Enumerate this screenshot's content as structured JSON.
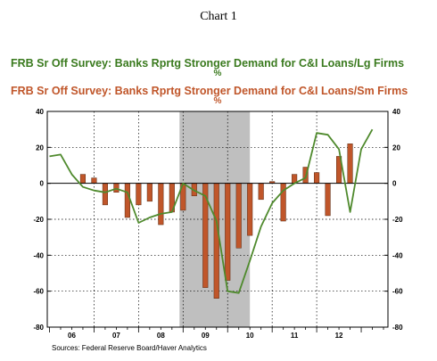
{
  "chart_data": {
    "type": "bar",
    "figure_title": "Chart 1",
    "series": [
      {
        "name": "FRB Sr Off Survey: Banks Rprtg Stronger Demand for C&I Loans/Lg Firms",
        "unit": "%",
        "kind": "line",
        "color": "#4f8a2d",
        "x": [
          2005.0,
          2005.25,
          2005.5,
          2005.75,
          2006.0,
          2006.25,
          2006.5,
          2006.75,
          2007.0,
          2007.25,
          2007.5,
          2007.75,
          2008.0,
          2008.25,
          2008.5,
          2008.75,
          2009.0,
          2009.25,
          2009.5,
          2009.75,
          2010.0,
          2010.25,
          2010.5,
          2010.75,
          2011.0,
          2011.25,
          2011.5,
          2011.75,
          2012.0,
          2012.25
        ],
        "values": [
          15,
          16,
          5,
          -2,
          -4,
          -5,
          -3,
          -5,
          -22,
          -19,
          -17,
          -16,
          0,
          -4,
          -7,
          -21,
          -60,
          -61,
          -43,
          -24,
          -11,
          -4,
          0,
          3,
          28,
          27,
          19,
          -16,
          19,
          30
        ]
      },
      {
        "name": "FRB Sr Off Survey: Banks Rprtg Stronger Demand for C&I Loans/Sm Firms",
        "unit": "%",
        "kind": "bar",
        "color": "#c0562a",
        "x": [
          2005.75,
          2006.0,
          2006.25,
          2006.5,
          2006.75,
          2007.0,
          2007.25,
          2007.5,
          2007.75,
          2008.0,
          2008.25,
          2008.5,
          2008.75,
          2009.0,
          2009.25,
          2009.5,
          2009.75,
          2010.0,
          2010.25,
          2010.5,
          2010.75,
          2011.0,
          2011.25,
          2011.5,
          2011.75,
          2012.0
        ],
        "values": [
          5,
          3,
          -12,
          -5,
          -19,
          -12,
          -10,
          -23,
          -16,
          -15,
          -7,
          -58,
          -64,
          -54,
          -36,
          -29,
          -9,
          1,
          -21,
          5,
          9,
          6,
          -18,
          15,
          22,
          0
        ]
      }
    ],
    "recession_shading": {
      "from": 2007.92,
      "to": 2009.5
    },
    "ylim": [
      -80,
      40
    ],
    "yticks": [
      -80,
      -60,
      -40,
      -20,
      0,
      20,
      40
    ],
    "xlim": [
      2004.95,
      2012.6
    ],
    "xticks": [
      {
        "value": 2005.5,
        "label": "06"
      },
      {
        "value": 2006.5,
        "label": "07"
      },
      {
        "value": 2007.5,
        "label": "08"
      },
      {
        "value": 2008.5,
        "label": "09"
      },
      {
        "value": 2009.5,
        "label": "10"
      },
      {
        "value": 2010.5,
        "label": "11"
      },
      {
        "value": 2011.5,
        "label": "12"
      }
    ],
    "vgrid": [
      2006.0,
      2007.0,
      2008.0,
      2009.0,
      2010.0,
      2011.0
    ],
    "grid": "dotted",
    "source": "Sources:  Federal Reserve Board/Haver Analytics"
  },
  "colors": {
    "axis": "#000000",
    "shading": "#bfbfbf",
    "title1": "#3a7a1e",
    "title2": "#c0562a"
  }
}
